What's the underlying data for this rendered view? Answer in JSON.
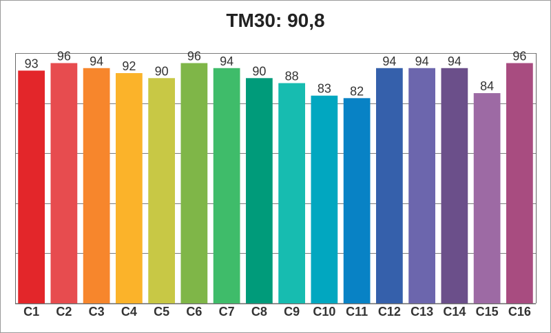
{
  "chart_data": {
    "type": "bar",
    "title": "TM30: 90,8",
    "xlabel": "",
    "ylabel": "",
    "ylim": [
      0,
      100
    ],
    "grid": true,
    "categories": [
      "C1",
      "C2",
      "C3",
      "C4",
      "C5",
      "C6",
      "C7",
      "C8",
      "C9",
      "C10",
      "C11",
      "C12",
      "C13",
      "C14",
      "C15",
      "C16"
    ],
    "values": [
      93,
      96,
      94,
      92,
      90,
      96,
      94,
      90,
      88,
      83,
      82,
      94,
      94,
      94,
      84,
      96
    ],
    "colors": [
      "#e3262a",
      "#e74c4f",
      "#f7862c",
      "#fbb32a",
      "#c8c845",
      "#7fb648",
      "#3fbc6a",
      "#009b7a",
      "#17bcb0",
      "#01a7c0",
      "#0882c5",
      "#3560ab",
      "#6c66ad",
      "#6b4f8a",
      "#9d6aa4",
      "#a84c80"
    ],
    "data_labels": [
      "93",
      "96",
      "94",
      "92",
      "90",
      "96",
      "94",
      "90",
      "88",
      "83",
      "82",
      "94",
      "94",
      "94",
      "84",
      "96"
    ]
  }
}
